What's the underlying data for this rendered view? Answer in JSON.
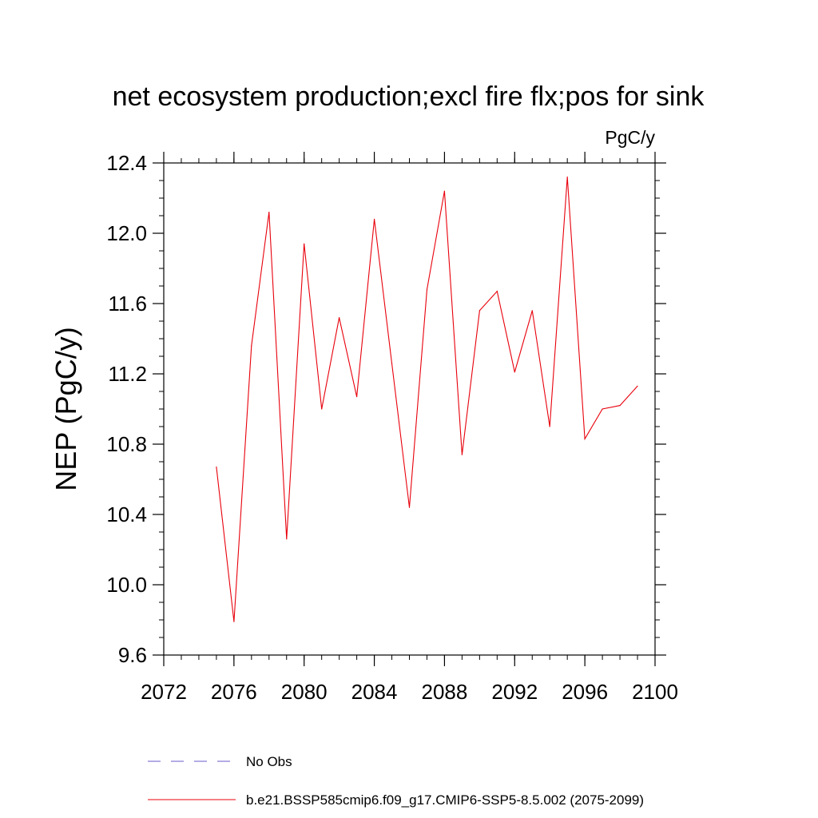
{
  "chart_data": {
    "type": "line",
    "title": "net ecosystem production;excl fire flx;pos for sink",
    "units_label": "PgC/y",
    "ylabel": "NEP  (PgC/y)",
    "xlabel": "",
    "xlim": [
      2072,
      2100
    ],
    "ylim": [
      9.6,
      12.4
    ],
    "x_ticks": [
      2072,
      2076,
      2080,
      2084,
      2088,
      2092,
      2096,
      2100
    ],
    "x_tick_labels": [
      "2072",
      "2076",
      "2080",
      "2084",
      "2088",
      "2092",
      "2096",
      "2100"
    ],
    "y_ticks": [
      9.6,
      10.0,
      10.4,
      10.8,
      11.2,
      11.6,
      12.0,
      12.4
    ],
    "y_tick_labels": [
      "9.6",
      "10.0",
      "10.4",
      "10.8",
      "11.2",
      "11.6",
      "12.0",
      "12.4"
    ],
    "grid": false,
    "legend_position": "bottom",
    "series": [
      {
        "name": "b.e21.BSSP585cmip6.f09_g17.CMIP6-SSP5-8.5.002 (2075-2099)",
        "color": "#e8000b",
        "x": [
          2075,
          2076,
          2077,
          2078,
          2079,
          2080,
          2081,
          2082,
          2083,
          2084,
          2085,
          2086,
          2087,
          2088,
          2089,
          2090,
          2091,
          2092,
          2093,
          2094,
          2095,
          2096,
          2097,
          2098,
          2099
        ],
        "y": [
          10.67,
          9.79,
          11.36,
          12.12,
          10.26,
          11.94,
          11.0,
          11.52,
          11.07,
          12.08,
          11.26,
          10.44,
          11.68,
          12.24,
          10.74,
          11.56,
          11.67,
          11.21,
          11.56,
          10.9,
          12.32,
          10.83,
          11.0,
          11.02,
          11.13
        ]
      }
    ]
  },
  "legend": {
    "items": [
      {
        "label": "No Obs",
        "color": "#6a5acd",
        "style": "dashed"
      },
      {
        "label": "b.e21.BSSP585cmip6.f09_g17.CMIP6-SSP5-8.5.002 (2075-2099)",
        "color": "#e8000b",
        "style": "solid"
      }
    ]
  }
}
